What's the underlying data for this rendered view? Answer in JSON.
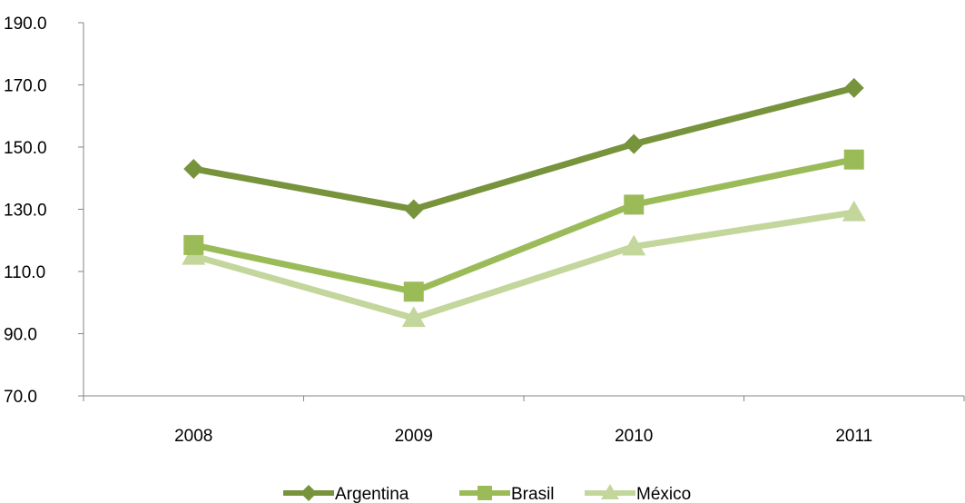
{
  "chart_data": {
    "type": "line",
    "title": "",
    "xlabel": "",
    "ylabel": "",
    "categories": [
      "2008",
      "2009",
      "2010",
      "2011"
    ],
    "ylim": [
      70,
      190
    ],
    "yticks": [
      70,
      90,
      110,
      130,
      150,
      170,
      190
    ],
    "ytick_labels": [
      "70.0",
      "90.0",
      "110.0",
      "130.0",
      "150.0",
      "170.0",
      "190.0"
    ],
    "grid": false,
    "legend_position": "bottom",
    "series": [
      {
        "name": "Argentina",
        "values": [
          143,
          130,
          151,
          169
        ],
        "marker": "diamond",
        "color": "#77933c"
      },
      {
        "name": "Brasil",
        "values": [
          118.5,
          103.5,
          131.5,
          146
        ],
        "marker": "square",
        "color": "#9bbb59"
      },
      {
        "name": "México",
        "values": [
          115,
          95,
          118,
          129
        ],
        "marker": "triangle",
        "color": "#c3d69b"
      }
    ]
  }
}
